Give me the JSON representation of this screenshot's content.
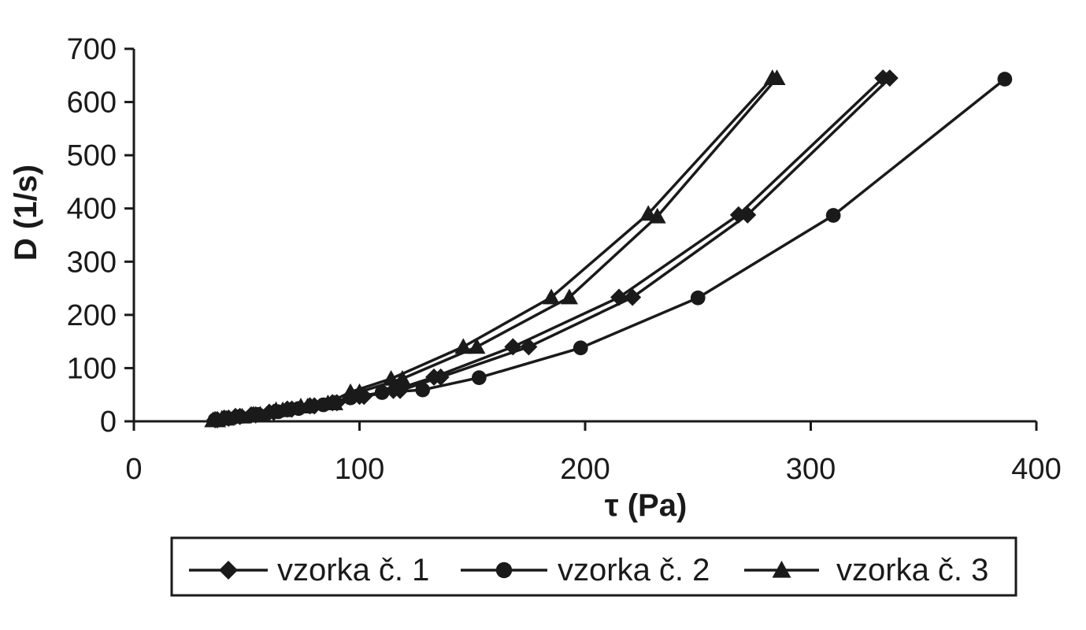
{
  "chart_data": {
    "type": "line",
    "xlabel": "τ (Pa)",
    "ylabel": "D (1/s)",
    "xlim": [
      0,
      400
    ],
    "ylim": [
      0,
      700
    ],
    "x_ticks": [
      "0",
      "100",
      "200",
      "300",
      "400"
    ],
    "y_ticks": [
      "0",
      "100",
      "200",
      "300",
      "400",
      "500",
      "600",
      "700"
    ],
    "legend_position": "bottom",
    "series": [
      {
        "name": "vzorka č. 1",
        "marker": "diamond",
        "color": "#1a1a1a",
        "points": [
          [
            36,
            3
          ],
          [
            40,
            6
          ],
          [
            45,
            9
          ],
          [
            52,
            12
          ],
          [
            60,
            17
          ],
          [
            68,
            23
          ],
          [
            78,
            29
          ],
          [
            88,
            35
          ],
          [
            100,
            47
          ],
          [
            115,
            58
          ],
          [
            133,
            83
          ],
          [
            168,
            140
          ],
          [
            215,
            233
          ],
          [
            268,
            388
          ],
          [
            332,
            645
          ],
          [
            335,
            645
          ],
          [
            272,
            388
          ],
          [
            221,
            233
          ],
          [
            175,
            140
          ],
          [
            136,
            83
          ],
          [
            118,
            58
          ],
          [
            102,
            47
          ],
          [
            90,
            35
          ],
          [
            80,
            29
          ],
          [
            70,
            23
          ],
          [
            62,
            17
          ],
          [
            54,
            12
          ],
          [
            47,
            9
          ],
          [
            42,
            6
          ],
          [
            37,
            3
          ]
        ]
      },
      {
        "name": "vzorka č. 2",
        "marker": "circle",
        "color": "#1a1a1a",
        "points": [
          [
            36,
            3
          ],
          [
            41,
            6
          ],
          [
            47,
            9
          ],
          [
            55,
            13
          ],
          [
            64,
            18
          ],
          [
            73,
            24
          ],
          [
            84,
            31
          ],
          [
            96,
            44
          ],
          [
            110,
            54
          ],
          [
            128,
            59
          ],
          [
            153,
            82
          ],
          [
            198,
            138
          ],
          [
            250,
            232
          ],
          [
            310,
            387
          ],
          [
            386,
            643
          ]
        ]
      },
      {
        "name": "vzorka č. 3",
        "marker": "triangle",
        "color": "#1a1a1a",
        "points": [
          [
            35,
            2
          ],
          [
            39,
            5
          ],
          [
            45,
            9
          ],
          [
            53,
            13
          ],
          [
            63,
            21
          ],
          [
            74,
            28
          ],
          [
            86,
            34
          ],
          [
            96,
            55
          ],
          [
            114,
            80
          ],
          [
            146,
            140
          ],
          [
            185,
            233
          ],
          [
            228,
            390
          ],
          [
            283,
            645
          ],
          [
            285,
            645
          ],
          [
            232,
            385
          ],
          [
            193,
            233
          ],
          [
            152,
            140
          ],
          [
            119,
            80
          ],
          [
            100,
            55
          ],
          [
            89,
            34
          ],
          [
            77,
            28
          ],
          [
            66,
            21
          ],
          [
            56,
            13
          ],
          [
            48,
            9
          ],
          [
            41,
            5
          ],
          [
            37,
            2
          ]
        ]
      }
    ]
  }
}
